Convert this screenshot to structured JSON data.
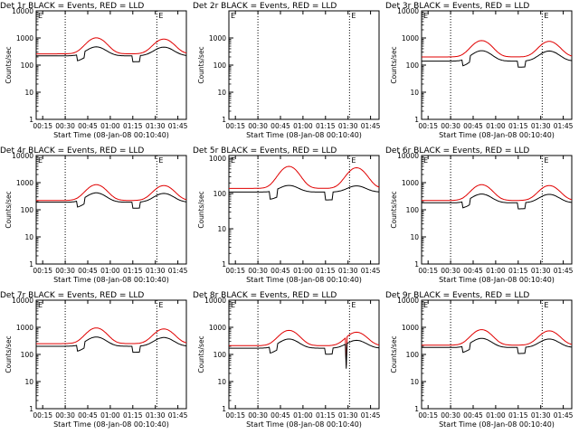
{
  "colors": {
    "events": "#000000",
    "lld": "#e00000",
    "axis": "#000000"
  },
  "chart_data": [
    {
      "type": "line",
      "title": "Det 1r BLACK = Events, RED = LLD",
      "xlabel": "Start Time (08-Jan-08 00:10:40)",
      "ylabel": "Counts/sec",
      "x_ticks": [
        "00:15",
        "00:30",
        "00:45",
        "01:00",
        "01:15",
        "01:30",
        "01:45"
      ],
      "y_ticks": [
        "1",
        "10",
        "100",
        "1000",
        "10000"
      ],
      "y_scale": "log",
      "ylim": [
        1,
        10000
      ],
      "xlim_minutes": [
        "00:10:40",
        "01:50:40"
      ],
      "vlines": [
        "00:30",
        "01:31"
      ],
      "marker_label": "E",
      "series": [
        {
          "color": "red",
          "base": 260,
          "peaks": [
            [
              0.4,
              750
            ],
            [
              0.85,
              650
            ]
          ]
        },
        {
          "color": "black",
          "base": 220,
          "peaks": [
            [
              0.4,
              250
            ],
            [
              0.85,
              240
            ]
          ],
          "dips": [
            0.27,
            0.64
          ]
        }
      ]
    },
    {
      "type": "line",
      "title": "Det 2r BLACK = Events, RED = LLD",
      "xlabel": "Start Time (08-Jan-08 00:10:40)",
      "ylabel": "Counts/sec",
      "x_ticks": [
        "00:15",
        "00:30",
        "00:45",
        "01:00",
        "01:15",
        "01:30",
        "01:45"
      ],
      "y_ticks": [
        "1",
        "10",
        "100",
        "1000"
      ],
      "y_scale": "log",
      "ylim": [
        1,
        10000
      ],
      "xlim_minutes": [
        "00:10:40",
        "01:50:40"
      ],
      "vlines": [
        "00:30",
        "01:31"
      ],
      "marker_label": "E",
      "series": []
    },
    {
      "type": "line",
      "title": "Det 3r BLACK = Events, RED = LLD",
      "xlabel": "Start Time (08-Jan-08 00:10:40)",
      "ylabel": "Counts/sec",
      "x_ticks": [
        "00:15",
        "00:30",
        "00:45",
        "01:00",
        "01:15",
        "01:30",
        "01:45"
      ],
      "y_ticks": [
        "1",
        "10",
        "100",
        "1000",
        "10000"
      ],
      "y_scale": "log",
      "ylim": [
        1,
        10000
      ],
      "xlim_minutes": [
        "00:10:40",
        "01:50:40"
      ],
      "vlines": [
        "00:30",
        "01:31"
      ],
      "marker_label": "E",
      "series": [
        {
          "color": "red",
          "base": 200,
          "peaks": [
            [
              0.4,
              600
            ],
            [
              0.85,
              550
            ]
          ]
        },
        {
          "color": "black",
          "base": 140,
          "peaks": [
            [
              0.4,
              200
            ],
            [
              0.85,
              190
            ]
          ],
          "dips": [
            0.27,
            0.64
          ]
        }
      ]
    },
    {
      "type": "line",
      "title": "Det 4r BLACK = Events, RED = LLD",
      "xlabel": "Start Time (08-Jan-08 00:10:40)",
      "ylabel": "Counts/sec",
      "x_ticks": [
        "00:15",
        "00:30",
        "00:45",
        "01:00",
        "01:15",
        "01:30",
        "01:45"
      ],
      "y_ticks": [
        "1",
        "10",
        "100",
        "1000",
        "10000"
      ],
      "y_scale": "log",
      "ylim": [
        1,
        10000
      ],
      "xlim_minutes": [
        "00:10:40",
        "01:50:40"
      ],
      "vlines": [
        "00:30",
        "01:31"
      ],
      "marker_label": "E",
      "series": [
        {
          "color": "red",
          "base": 220,
          "peaks": [
            [
              0.4,
              620
            ],
            [
              0.85,
              560
            ]
          ]
        },
        {
          "color": "black",
          "base": 190,
          "peaks": [
            [
              0.4,
              230
            ],
            [
              0.85,
              210
            ]
          ],
          "dips": [
            0.27,
            0.64
          ]
        }
      ]
    },
    {
      "type": "line",
      "title": "Det 5r BLACK = Events, RED = LLD",
      "xlabel": "Start Time (08-Jan-08 00:10:40)",
      "ylabel": "Counts/sec",
      "x_ticks": [
        "00:15",
        "00:30",
        "00:45",
        "01:00",
        "01:15",
        "01:30",
        "01:45"
      ],
      "y_ticks": [
        "1",
        "10",
        "100",
        "1000"
      ],
      "y_scale": "log",
      "ylim": [
        1,
        1200
      ],
      "xlim_minutes": [
        "00:10:40",
        "01:50:40"
      ],
      "vlines": [
        "00:30",
        "01:31"
      ],
      "marker_label": "E",
      "series": [
        {
          "color": "red",
          "base": 140,
          "peaks": [
            [
              0.4,
              450
            ],
            [
              0.85,
              400
            ]
          ]
        },
        {
          "color": "black",
          "base": 110,
          "peaks": [
            [
              0.4,
              60
            ],
            [
              0.85,
              55
            ]
          ],
          "dips": [
            0.27,
            0.64
          ]
        }
      ]
    },
    {
      "type": "line",
      "title": "Det 6r BLACK = Events, RED = LLD",
      "xlabel": "Start Time (08-Jan-08 00:10:40)",
      "ylabel": "Counts/sec",
      "x_ticks": [
        "00:15",
        "00:30",
        "00:45",
        "01:00",
        "01:15",
        "01:30",
        "01:45"
      ],
      "y_ticks": [
        "1",
        "10",
        "100",
        "1000",
        "10000"
      ],
      "y_scale": "log",
      "ylim": [
        1,
        10000
      ],
      "xlim_minutes": [
        "00:10:40",
        "01:50:40"
      ],
      "vlines": [
        "00:30",
        "01:31"
      ],
      "marker_label": "E",
      "series": [
        {
          "color": "red",
          "base": 220,
          "peaks": [
            [
              0.4,
              620
            ],
            [
              0.85,
              560
            ]
          ]
        },
        {
          "color": "black",
          "base": 180,
          "peaks": [
            [
              0.4,
              200
            ],
            [
              0.85,
              190
            ]
          ],
          "dips": [
            0.27,
            0.64
          ]
        }
      ]
    },
    {
      "type": "line",
      "title": "Det 7r BLACK = Events, RED = LLD",
      "xlabel": "Start Time (08-Jan-08 00:10:40)",
      "ylabel": "Counts/sec",
      "x_ticks": [
        "00:15",
        "00:30",
        "00:45",
        "01:00",
        "01:15",
        "01:30",
        "01:45"
      ],
      "y_ticks": [
        "1",
        "10",
        "100",
        "1000",
        "10000"
      ],
      "y_scale": "log",
      "ylim": [
        1,
        10000
      ],
      "xlim_minutes": [
        "00:10:40",
        "01:50:40"
      ],
      "vlines": [
        "00:30",
        "01:31"
      ],
      "marker_label": "E",
      "series": [
        {
          "color": "red",
          "base": 250,
          "peaks": [
            [
              0.4,
              700
            ],
            [
              0.85,
              620
            ]
          ]
        },
        {
          "color": "black",
          "base": 200,
          "peaks": [
            [
              0.4,
              240
            ],
            [
              0.85,
              220
            ]
          ],
          "dips": [
            0.27,
            0.64
          ]
        }
      ]
    },
    {
      "type": "line",
      "title": "Det 8r BLACK = Events, RED = LLD",
      "xlabel": "Start Time (08-Jan-08 00:10:40)",
      "ylabel": "Counts/sec",
      "x_ticks": [
        "00:15",
        "00:30",
        "00:45",
        "01:00",
        "01:15",
        "01:30",
        "01:45"
      ],
      "y_ticks": [
        "1",
        "10",
        "100",
        "1000",
        "10000"
      ],
      "y_scale": "log",
      "ylim": [
        1,
        10000
      ],
      "xlim_minutes": [
        "00:10:40",
        "01:50:40"
      ],
      "vlines": [
        "00:30",
        "01:31"
      ],
      "marker_label": "E",
      "series": [
        {
          "color": "red",
          "base": 210,
          "peaks": [
            [
              0.4,
              560
            ],
            [
              0.85,
              450
            ]
          ],
          "spikes": [
            [
              0.78,
              40
            ],
            [
              0.82,
              600
            ]
          ]
        },
        {
          "color": "black",
          "base": 170,
          "peaks": [
            [
              0.4,
              200
            ],
            [
              0.85,
              160
            ]
          ],
          "dips": [
            0.27,
            0.64
          ],
          "spikes": [
            [
              0.78,
              30
            ]
          ]
        }
      ]
    },
    {
      "type": "line",
      "title": "Det 9r BLACK = Events, RED = LLD",
      "xlabel": "Start Time (08-Jan-08 00:10:40)",
      "ylabel": "Counts/sec",
      "x_ticks": [
        "00:15",
        "00:30",
        "00:45",
        "01:00",
        "01:15",
        "01:30",
        "01:45"
      ],
      "y_ticks": [
        "1",
        "10",
        "100",
        "1000",
        "10000"
      ],
      "y_scale": "log",
      "ylim": [
        1,
        10000
      ],
      "xlim_minutes": [
        "00:10:40",
        "01:50:40"
      ],
      "vlines": [
        "00:30",
        "01:31"
      ],
      "marker_label": "E",
      "series": [
        {
          "color": "red",
          "base": 220,
          "peaks": [
            [
              0.4,
              600
            ],
            [
              0.85,
              520
            ]
          ]
        },
        {
          "color": "black",
          "base": 180,
          "peaks": [
            [
              0.4,
              210
            ],
            [
              0.85,
              190
            ]
          ],
          "dips": [
            0.27,
            0.64
          ]
        }
      ]
    }
  ]
}
